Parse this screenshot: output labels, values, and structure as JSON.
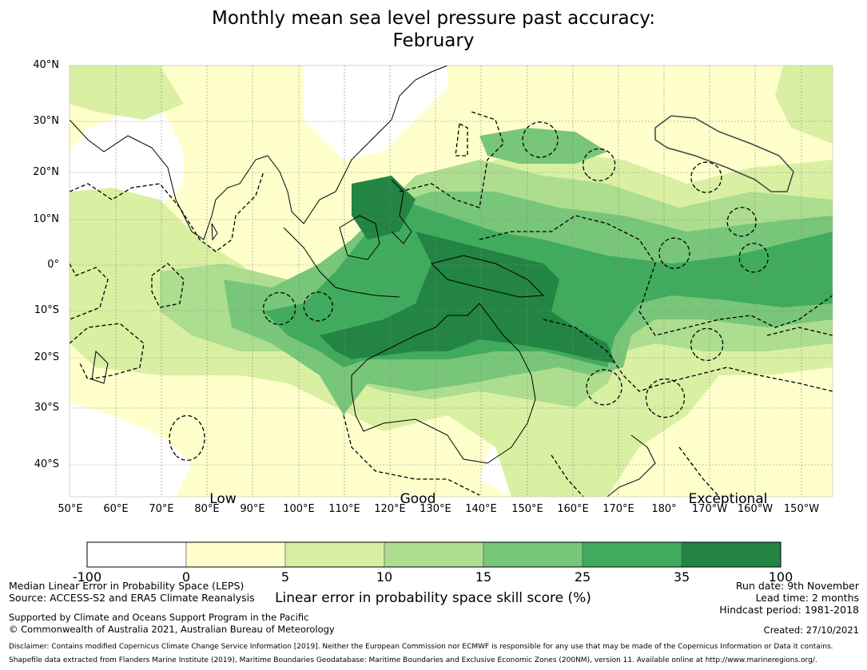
{
  "title": {
    "line1": "Monthly mean sea level pressure past accuracy:",
    "line2": "February"
  },
  "map": {
    "lon_ticks": [
      "50°E",
      "60°E",
      "70°E",
      "80°E",
      "90°E",
      "100°E",
      "110°E",
      "120°E",
      "130°E",
      "140°E",
      "150°E",
      "160°E",
      "170°E",
      "180°",
      "170°W",
      "160°W",
      "150°W"
    ],
    "lat_ticks": [
      "40°N",
      "30°N",
      "20°N",
      "10°N",
      "0°",
      "10°S",
      "20°S",
      "30°S",
      "40°S"
    ],
    "annotations": {
      "low": "Low",
      "good": "Good",
      "exceptional": "Exceptional"
    },
    "colors": {
      "land_line": "#000000",
      "grid": "#888888",
      "eez": "#000000",
      "highlight_contour": "#444444"
    }
  },
  "colorbar": {
    "title": "Linear error in probability space skill score (%)",
    "bins": [
      {
        "from": -100,
        "to": 0,
        "color": "#ffffff"
      },
      {
        "from": 0,
        "to": 5,
        "color": "#ffffcc"
      },
      {
        "from": 5,
        "to": 10,
        "color": "#d9f0a3"
      },
      {
        "from": 10,
        "to": 15,
        "color": "#addd8e"
      },
      {
        "from": 15,
        "to": 25,
        "color": "#78c679"
      },
      {
        "from": 25,
        "to": 35,
        "color": "#41ab5d"
      },
      {
        "from": 35,
        "to": 100,
        "color": "#238443"
      }
    ],
    "tick_labels": [
      "-100",
      "0",
      "5",
      "10",
      "15",
      "25",
      "35",
      "100"
    ]
  },
  "footer": {
    "left1": "Median Linear Error in Probability Space (LEPS)",
    "left2": "Source: ACCESS-S2 and ERA5 Climate Reanalysis",
    "left3": "Supported by Climate and Oceans Support Program in the Pacific",
    "left4": "© Commonwealth of Australia 2021, Australian Bureau of Meteorology",
    "right1": "Run date: 9th November",
    "right2": "Lead time: 2 months",
    "right3": "Hindcast period: 1981-2018",
    "right4": "Created: 27/10/2021",
    "disclaimer1": "Disclaimer: Contains modified Copernicus Climate Change Service Information [2019]. Neither the European Commission nor ECMWF is responsible for any use that may be made of the Copernicus Information or Data it contains.",
    "disclaimer2": "Shapefile data extracted from Flanders Marine Institute (2019), Maritime Boundaries Geodatabase: Maritime Boundaries and Exclusive Economic Zones (200NM), version 11. Available online at http://www.marineregions.org/."
  }
}
